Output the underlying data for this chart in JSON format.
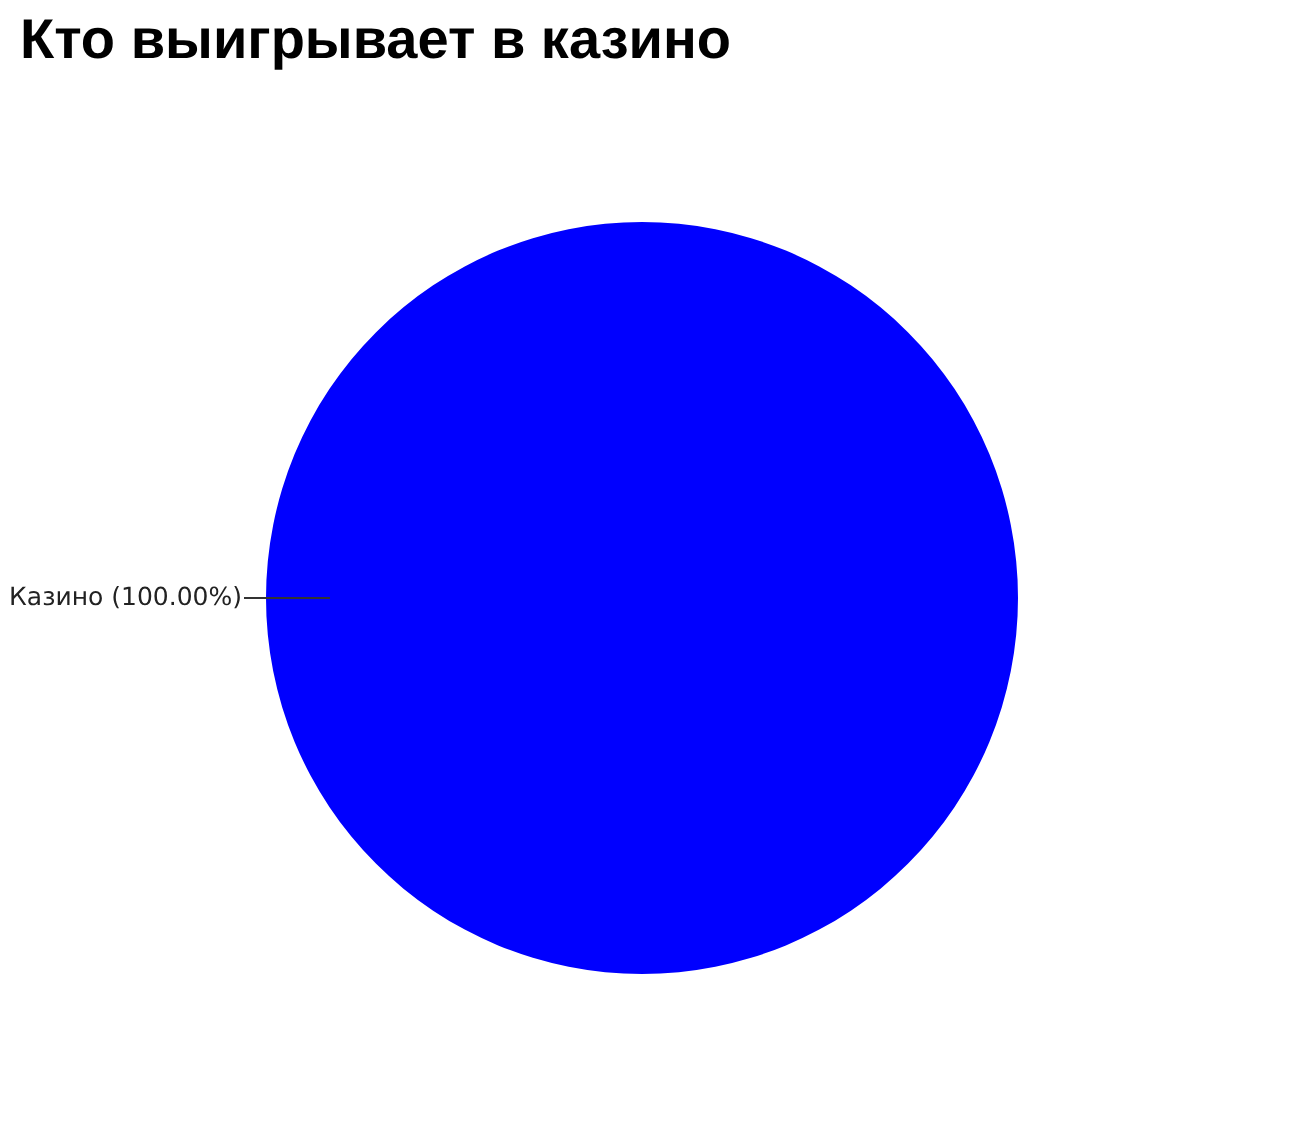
{
  "chart_data": {
    "type": "pie",
    "title": "Кто выигрывает в казино",
    "categories": [
      "Казино"
    ],
    "values": [
      100
    ],
    "colors": [
      "#0000ff"
    ],
    "value_labels": [
      "(100.00%)"
    ],
    "legend": false
  }
}
